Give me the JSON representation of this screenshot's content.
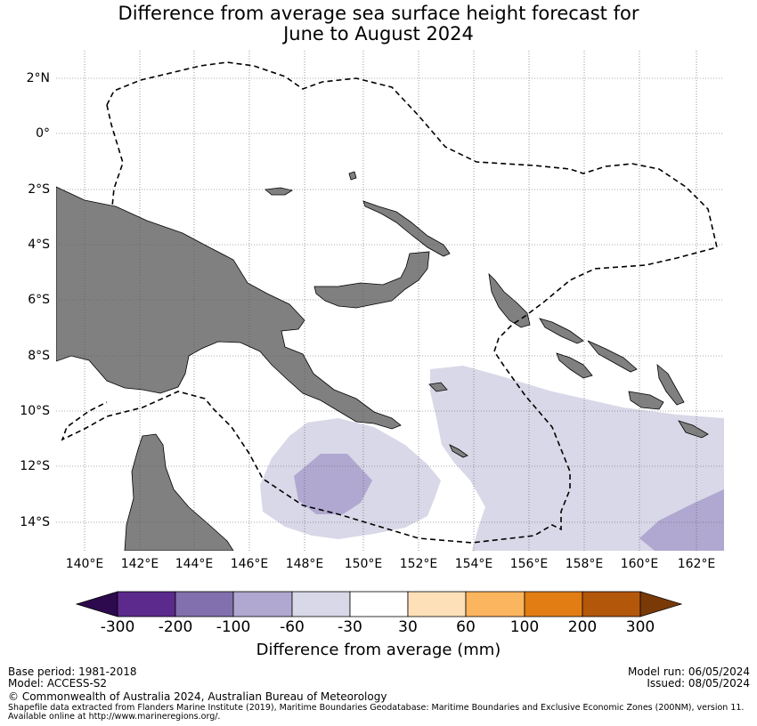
{
  "title": {
    "line1": "Difference from average sea surface height forecast for",
    "line2": "June to August 2024"
  },
  "map": {
    "lat_labels": [
      "2°N",
      "0°",
      "2°S",
      "4°S",
      "6°S",
      "8°S",
      "10°S",
      "12°S",
      "14°S"
    ],
    "lon_labels": [
      "140°E",
      "142°E",
      "144°E",
      "146°E",
      "148°E",
      "150°E",
      "152°E",
      "154°E",
      "156°E",
      "158°E",
      "160°E",
      "162°E"
    ],
    "land_color": "#808080",
    "eez_boundary_style": "dashed",
    "anomaly_colors": {
      "-60 to -30": "#d8d8e8",
      "-100 to -60": "#b0a8d0"
    }
  },
  "colorbar": {
    "ticks": [
      "-300",
      "-200",
      "-100",
      "-60",
      "-30",
      "30",
      "60",
      "100",
      "200",
      "300"
    ],
    "colors": [
      "#2d0a4e",
      "#5c2a8c",
      "#8170ad",
      "#b0a8d0",
      "#d8d8e8",
      "#ffffff",
      "#fde0b8",
      "#fbb55e",
      "#e27d14",
      "#b3570a",
      "#7a3a08"
    ],
    "label": "Difference from average (mm)"
  },
  "footer": {
    "base_period": "Base period: 1981-2018",
    "model": "Model: ACCESS-S2",
    "model_run": "Model run: 06/05/2024",
    "issued": "Issued: 08/05/2024",
    "copyright": "© Commonwealth of Australia 2024, Australian Bureau of Meteorology",
    "shapefile_line1": "Shapefile data extracted from Flanders Marine Institute (2019), Maritime Boundaries Geodatabase: Maritime Boundaries and Exclusive Economic Zones (200NM), version 11.",
    "shapefile_line2": "Available online at http://www.marineregions.org/."
  }
}
